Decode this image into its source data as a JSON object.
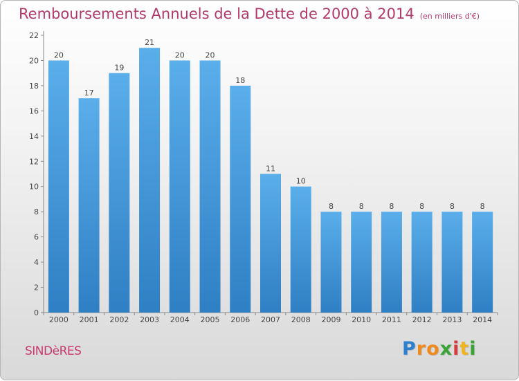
{
  "chart_data": {
    "type": "bar",
    "title": "Remboursements Annuels de la Dette de 2000 à 2014",
    "subtitle": "(en milliers d'€)",
    "categories": [
      "2000",
      "2001",
      "2002",
      "2003",
      "2004",
      "2005",
      "2006",
      "2007",
      "2008",
      "2009",
      "2010",
      "2011",
      "2012",
      "2013",
      "2014"
    ],
    "values": [
      20,
      17,
      19,
      21,
      20,
      20,
      18,
      11,
      10,
      8,
      8,
      8,
      8,
      8,
      8
    ],
    "ylim": [
      0,
      22
    ],
    "yticks": [
      0,
      2,
      4,
      6,
      8,
      10,
      12,
      14,
      16,
      18,
      20,
      22
    ],
    "xlabel": "",
    "ylabel": "",
    "grid": false,
    "bar_color": "#4a9fe0"
  },
  "footer": {
    "town": "SINDèRES",
    "logo_letters": [
      "P",
      "r",
      "o",
      "x",
      "i",
      "t",
      "i"
    ],
    "logo_colors": [
      "#2f7fd0",
      "#f08a1c",
      "#f08a1c",
      "#3aa335",
      "#d63a3a",
      "#f0b41c",
      "#3aa335"
    ]
  }
}
